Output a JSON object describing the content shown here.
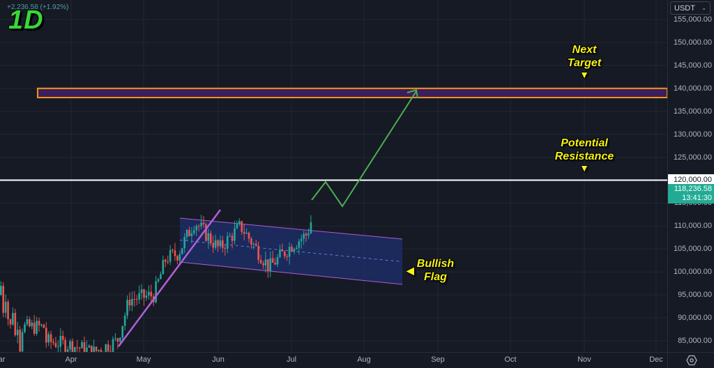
{
  "header": {
    "change_text": "+2,236.58 (+1.92%)",
    "timeframe": "1D"
  },
  "currency_select": {
    "value": "USDT",
    "icon": "chevron-down-icon"
  },
  "price_axis": {
    "ticks": [
      "155,000.00",
      "150,000.00",
      "145,000.00",
      "140,000.00",
      "135,000.00",
      "130,000.00",
      "125,000.00",
      "120,000.00",
      "115,000.00",
      "110,000.00",
      "105,000.00",
      "100,000.00",
      "95,000.00",
      "90,000.00",
      "85,000.00"
    ],
    "level_badge": "120,000.00",
    "current_price": "118,236.58",
    "countdown": "13:41:30"
  },
  "time_axis": {
    "ticks": [
      "Mar",
      "Apr",
      "May",
      "Jun",
      "Jul",
      "Aug",
      "Sep",
      "Oct",
      "Nov",
      "Dec"
    ],
    "settings_icon": "gear-icon"
  },
  "annotations": {
    "next_target": "Next\nTarget",
    "potential_resistance": "Potential\nResistance",
    "bullish_flag": "Bullish\nFlag"
  },
  "colors": {
    "background": "#161a25",
    "grid": "#232733",
    "up_candle": "#26a69a",
    "down_candle": "#ef5350",
    "target_zone_border": "#f7931a",
    "target_zone_fill": "#3a1f5c",
    "resistance_line": "#ffffff",
    "flag_fill": "#1e2f6e",
    "flag_border": "#b05cd6",
    "trendline": "#b35fd9",
    "projection": "#4caf50",
    "annotation_text": "#f5f21a",
    "timeframe_text": "#39d63a",
    "price_badge": "#22ab94"
  },
  "chart_data": {
    "type": "candlestick",
    "title": "1D",
    "symbol_quote": "USDT",
    "xlabel": "",
    "ylabel": "",
    "ylim": [
      83000,
      156000
    ],
    "x_ticks": [
      "Mar",
      "Apr",
      "May",
      "Jun",
      "Jul",
      "Aug",
      "Sep",
      "Oct",
      "Nov",
      "Dec"
    ],
    "y_ticks": [
      85000,
      90000,
      95000,
      100000,
      105000,
      110000,
      115000,
      120000,
      125000,
      130000,
      135000,
      140000,
      145000,
      150000,
      155000
    ],
    "last_price": 118236.58,
    "change": 2236.58,
    "change_pct": 1.92,
    "countdown": "13:41:30",
    "approx_closes": [
      {
        "date": "Mar-20",
        "close": 85000
      },
      {
        "date": "Apr-01",
        "close": 84000
      },
      {
        "date": "Apr-10",
        "close": 82500
      },
      {
        "date": "Apr-20",
        "close": 85000
      },
      {
        "date": "Apr-25",
        "close": 94000
      },
      {
        "date": "May-05",
        "close": 95000
      },
      {
        "date": "May-10",
        "close": 103000
      },
      {
        "date": "May-15",
        "close": 104000
      },
      {
        "date": "May-22",
        "close": 111000
      },
      {
        "date": "Jun-01",
        "close": 105000
      },
      {
        "date": "Jun-10",
        "close": 110000
      },
      {
        "date": "Jun-22",
        "close": 101000
      },
      {
        "date": "Jul-01",
        "close": 106000
      },
      {
        "date": "Jul-08",
        "close": 108500
      },
      {
        "date": "Jul-11",
        "close": 117500
      },
      {
        "date": "Jul-14",
        "close": 118236.58
      }
    ],
    "drawings": [
      {
        "type": "rectangle",
        "label": "Next Target zone",
        "from_price": 138000,
        "to_price": 140000,
        "color": "#f7931a"
      },
      {
        "type": "horizontal_line",
        "label": "Potential Resistance",
        "price": 120000,
        "color": "#ffffff"
      },
      {
        "type": "parallel_channel",
        "label": "Bullish Flag",
        "upper": [
          [
            "May-22",
            111500
          ],
          [
            "Aug-22",
            107000
          ]
        ],
        "lower": [
          [
            "May-22",
            102000
          ],
          [
            "Aug-22",
            97500
          ]
        ],
        "color": "#b05cd6"
      },
      {
        "type": "trendline",
        "from": [
          "Apr-20",
          84000
        ],
        "to": [
          "Jun-01",
          113500
        ],
        "color": "#b35fd9"
      },
      {
        "type": "projection_path",
        "points": [
          [
            "Jul-11",
            115000
          ],
          [
            "Jul-16",
            120000
          ],
          [
            "Jul-22",
            114500
          ],
          [
            "Aug-30",
            139500
          ]
        ],
        "color": "#4caf50"
      }
    ]
  }
}
